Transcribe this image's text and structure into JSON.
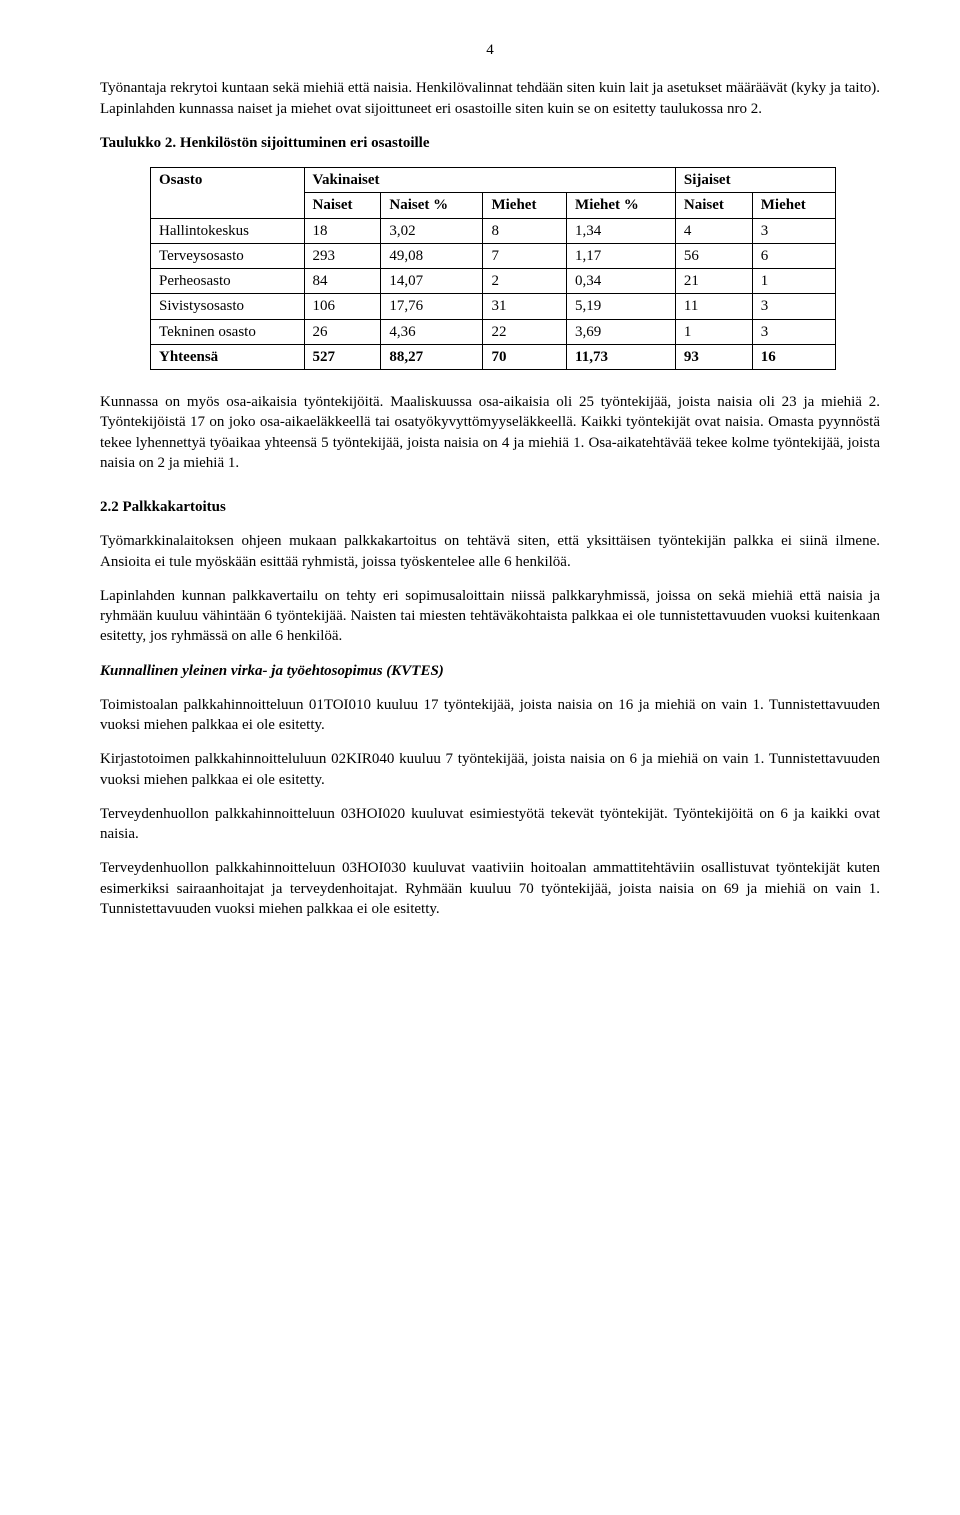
{
  "page_number": "4",
  "para1": "Työnantaja rekrytoi kuntaan sekä miehiä että naisia. Henkilövalinnat tehdään siten kuin lait ja asetukset määräävät (kyky ja taito). Lapinlahden kunnassa naiset ja miehet ovat sijoittuneet eri osastoille siten kuin se on esitetty taulukossa nro 2.",
  "table_caption": "Taulukko 2. Henkilöstön sijoittuminen eri osastoille",
  "table": {
    "top_headers": {
      "col0": "Osasto",
      "col1": "Vakinaiset",
      "col2": "Sijaiset"
    },
    "sub_headers": {
      "c1": "Naiset",
      "c2": "Naiset %",
      "c3": "Miehet",
      "c4": "Miehet %",
      "c5": "Naiset",
      "c6": "Miehet"
    },
    "rows": [
      {
        "label": "Hallintokeskus",
        "c1": "18",
        "c2": "3,02",
        "c3": "8",
        "c4": "1,34",
        "c5": "4",
        "c6": "3"
      },
      {
        "label": "Terveysosasto",
        "c1": "293",
        "c2": "49,08",
        "c3": "7",
        "c4": "1,17",
        "c5": "56",
        "c6": "6"
      },
      {
        "label": "Perheosasto",
        "c1": "84",
        "c2": "14,07",
        "c3": "2",
        "c4": "0,34",
        "c5": "21",
        "c6": "1"
      },
      {
        "label": "Sivistysosasto",
        "c1": "106",
        "c2": "17,76",
        "c3": "31",
        "c4": "5,19",
        "c5": "11",
        "c6": "3"
      },
      {
        "label": "Tekninen osasto",
        "c1": "26",
        "c2": "4,36",
        "c3": "22",
        "c4": "3,69",
        "c5": "1",
        "c6": "3"
      }
    ],
    "total_row": {
      "label": "Yhteensä",
      "c1": "527",
      "c2": "88,27",
      "c3": "70",
      "c4": "11,73",
      "c5": "93",
      "c6": "16"
    }
  },
  "para2": "Kunnassa on myös osa-aikaisia työntekijöitä. Maaliskuussa osa-aikaisia oli 25 työntekijää, joista naisia oli 23 ja miehiä 2. Työntekijöistä 17 on joko osa-aikaeläkkeellä tai osatyökyvyttömyyseläkkeellä. Kaikki työntekijät ovat naisia. Omasta pyynnöstä tekee lyhennettyä työaikaa yhteensä 5 työntekijää, joista naisia on 4 ja miehiä 1. Osa-aikatehtävää tekee kolme työntekijää, joista naisia on 2 ja miehiä 1.",
  "h2_2": "2.2 Palkkakartoitus",
  "para3": "Työmarkkinalaitoksen ohjeen mukaan palkkakartoitus on tehtävä siten, että yksittäisen työntekijän palkka ei siinä ilmene. Ansioita ei tule myöskään esittää ryhmistä, joissa työskentelee alle 6 henkilöä.",
  "para4": "Lapinlahden kunnan palkkavertailu on tehty eri sopimusaloittain niissä palkkaryhmissä, joissa on sekä miehiä että naisia ja ryhmään kuuluu vähintään 6 työntekijää. Naisten tai miesten tehtäväkohtaista palkkaa ei ole tunnistettavuuden vuoksi kuitenkaan esitetty, jos ryhmässä on alle 6 henkilöä.",
  "kvtes_heading": "Kunnallinen yleinen virka- ja työehtosopimus (KVTES)",
  "para5": "Toimistoalan palkkahinnoitteluun 01TOI010 kuuluu 17 työntekijää, joista naisia on 16 ja miehiä on vain 1. Tunnistettavuuden vuoksi miehen palkkaa ei ole esitetty.",
  "para6": "Kirjastotoimen palkkahinnoitteluluun 02KIR040 kuuluu 7 työntekijää, joista naisia on 6 ja miehiä on vain 1. Tunnistettavuuden vuoksi miehen palkkaa ei ole esitetty.",
  "para7": "Terveydenhuollon palkkahinnoitteluun 03HOI020 kuuluvat esimiestyötä tekevät työntekijät. Työntekijöitä on 6 ja kaikki ovat naisia.",
  "para8": "Terveydenhuollon palkkahinnoitteluun 03HOI030 kuuluvat vaativiin hoitoalan ammattitehtäviin osallistuvat työntekijät kuten esimerkiksi sairaanhoitajat ja terveydenhoitajat. Ryhmään kuuluu 70 työntekijää, joista naisia on 69 ja miehiä on vain 1. Tunnistettavuuden vuoksi miehen palkkaa ei ole esitetty."
}
